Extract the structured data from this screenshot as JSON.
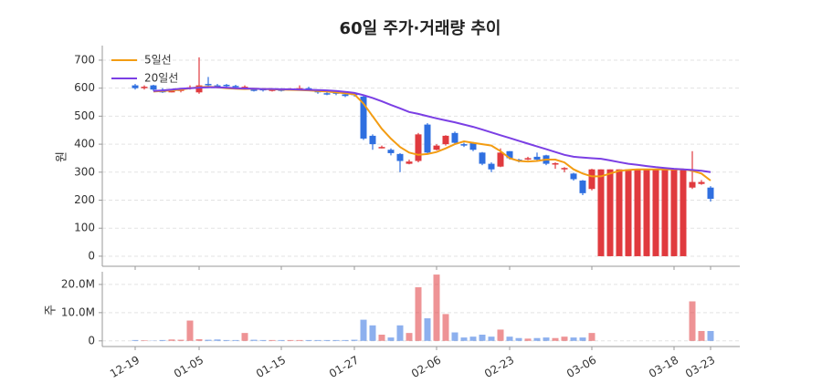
{
  "chart_data": {
    "type": "candlestick",
    "title": "60일 주가·거래량 추이",
    "ylabel": "원",
    "categories": [
      "12-19",
      null,
      null,
      null,
      null,
      null,
      null,
      "01-05",
      null,
      null,
      null,
      null,
      null,
      null,
      null,
      null,
      "01-15",
      null,
      null,
      null,
      null,
      null,
      null,
      null,
      "01-27",
      null,
      null,
      null,
      null,
      null,
      null,
      null,
      null,
      "02-06",
      null,
      null,
      null,
      null,
      null,
      null,
      null,
      "02-23",
      null,
      null,
      null,
      null,
      null,
      null,
      null,
      null,
      "03-06",
      null,
      null,
      null,
      null,
      null,
      null,
      null,
      null,
      "03-18",
      null,
      null,
      null,
      "03-23"
    ],
    "open": [
      610,
      600,
      610,
      590,
      585,
      590,
      598,
      585,
      615,
      610,
      612,
      608,
      600,
      595,
      598,
      590,
      595,
      592,
      598,
      600,
      590,
      582,
      585,
      578,
      580,
      570,
      430,
      385,
      380,
      365,
      330,
      340,
      470,
      380,
      400,
      440,
      400,
      405,
      370,
      330,
      320,
      375,
      345,
      345,
      355,
      360,
      330,
      310,
      295,
      270,
      240,
      0,
      0,
      0,
      0,
      0,
      0,
      0,
      0,
      0,
      0,
      245,
      258,
      245
    ],
    "high": [
      615,
      610,
      612,
      600,
      592,
      600,
      610,
      710,
      640,
      615,
      615,
      612,
      610,
      600,
      600,
      600,
      600,
      600,
      610,
      605,
      592,
      590,
      588,
      582,
      582,
      575,
      435,
      395,
      385,
      368,
      345,
      440,
      475,
      400,
      432,
      445,
      405,
      408,
      372,
      335,
      385,
      375,
      348,
      355,
      370,
      362,
      335,
      318,
      298,
      272,
      312,
      310,
      310,
      310,
      310,
      310,
      310,
      310,
      310,
      310,
      310,
      375,
      272,
      250
    ],
    "low": [
      595,
      595,
      590,
      583,
      585,
      585,
      595,
      580,
      600,
      600,
      600,
      598,
      595,
      588,
      588,
      588,
      588,
      592,
      595,
      590,
      580,
      575,
      575,
      568,
      570,
      415,
      380,
      385,
      360,
      300,
      328,
      335,
      365,
      378,
      395,
      400,
      390,
      375,
      325,
      300,
      318,
      345,
      335,
      343,
      340,
      325,
      312,
      300,
      270,
      218,
      235,
      0,
      0,
      0,
      0,
      0,
      0,
      0,
      0,
      0,
      0,
      240,
      255,
      195
    ],
    "close": [
      600,
      605,
      595,
      587,
      590,
      595,
      603,
      610,
      612,
      605,
      608,
      604,
      605,
      592,
      592,
      595,
      592,
      597,
      600,
      596,
      585,
      578,
      580,
      572,
      575,
      420,
      400,
      390,
      368,
      340,
      338,
      435,
      370,
      395,
      430,
      405,
      395,
      380,
      330,
      310,
      370,
      350,
      340,
      350,
      345,
      330,
      332,
      315,
      275,
      225,
      310,
      310,
      310,
      310,
      310,
      310,
      310,
      310,
      310,
      310,
      310,
      265,
      265,
      205
    ],
    "up_color": "#e03a3e",
    "down_color": "#2f6fe0",
    "ylim": [
      -36,
      752
    ],
    "yticks": [
      0,
      100,
      200,
      300,
      400,
      500,
      600,
      700
    ],
    "grid": true,
    "legend": "upper left",
    "lines": [
      {
        "name": "5일선",
        "color": "#f39c12",
        "values": [
          null,
          null,
          588,
          590,
          592,
          595,
          600,
          603,
          605,
          603,
          600,
          598,
          597,
          598,
          597,
          596,
          595,
          594,
          593,
          592,
          590,
          588,
          585,
          582,
          578,
          545,
          500,
          455,
          420,
          390,
          370,
          362,
          365,
          372,
          385,
          400,
          410,
          405,
          400,
          395,
          375,
          350,
          340,
          338,
          340,
          345,
          345,
          335,
          310,
          295,
          285,
          285,
          295,
          305,
          308,
          310,
          310,
          310,
          310,
          310,
          310,
          305,
          295,
          270
        ]
      },
      {
        "name": "20일선",
        "color": "#7b3fe4",
        "values": [
          null,
          null,
          590,
          592,
          595,
          598,
          600,
          602,
          603,
          603,
          602,
          600,
          599,
          598,
          597,
          597,
          596,
          596,
          595,
          594,
          593,
          592,
          590,
          587,
          583,
          575,
          565,
          553,
          540,
          528,
          515,
          508,
          500,
          492,
          485,
          478,
          470,
          462,
          452,
          442,
          432,
          422,
          412,
          402,
          392,
          382,
          372,
          362,
          355,
          352,
          350,
          348,
          342,
          336,
          330,
          326,
          322,
          318,
          315,
          312,
          310,
          308,
          305,
          300
        ]
      }
    ],
    "volume": {
      "ylabel": "주",
      "values": [
        300000,
        200000,
        100000,
        300000,
        500000,
        400000,
        7200000,
        600000,
        400000,
        500000,
        300000,
        300000,
        2800000,
        400000,
        300000,
        300000,
        300000,
        300000,
        300000,
        300000,
        300000,
        300000,
        300000,
        300000,
        400000,
        7500000,
        5500000,
        2200000,
        1200000,
        5500000,
        2800000,
        19000000,
        8000000,
        23500000,
        9500000,
        3000000,
        1200000,
        1500000,
        2200000,
        1500000,
        4000000,
        1500000,
        1000000,
        800000,
        1000000,
        1200000,
        1000000,
        1500000,
        1200000,
        1200000,
        2800000,
        0,
        0,
        0,
        0,
        0,
        0,
        0,
        0,
        0,
        0,
        14000000,
        3500000,
        3500000
      ],
      "ylim": [
        -2000000,
        24500000
      ],
      "yticks": [
        0,
        {
          "value": 10000000,
          "label": "10.0M"
        },
        {
          "value": 20000000,
          "label": "20.0M"
        }
      ]
    }
  }
}
